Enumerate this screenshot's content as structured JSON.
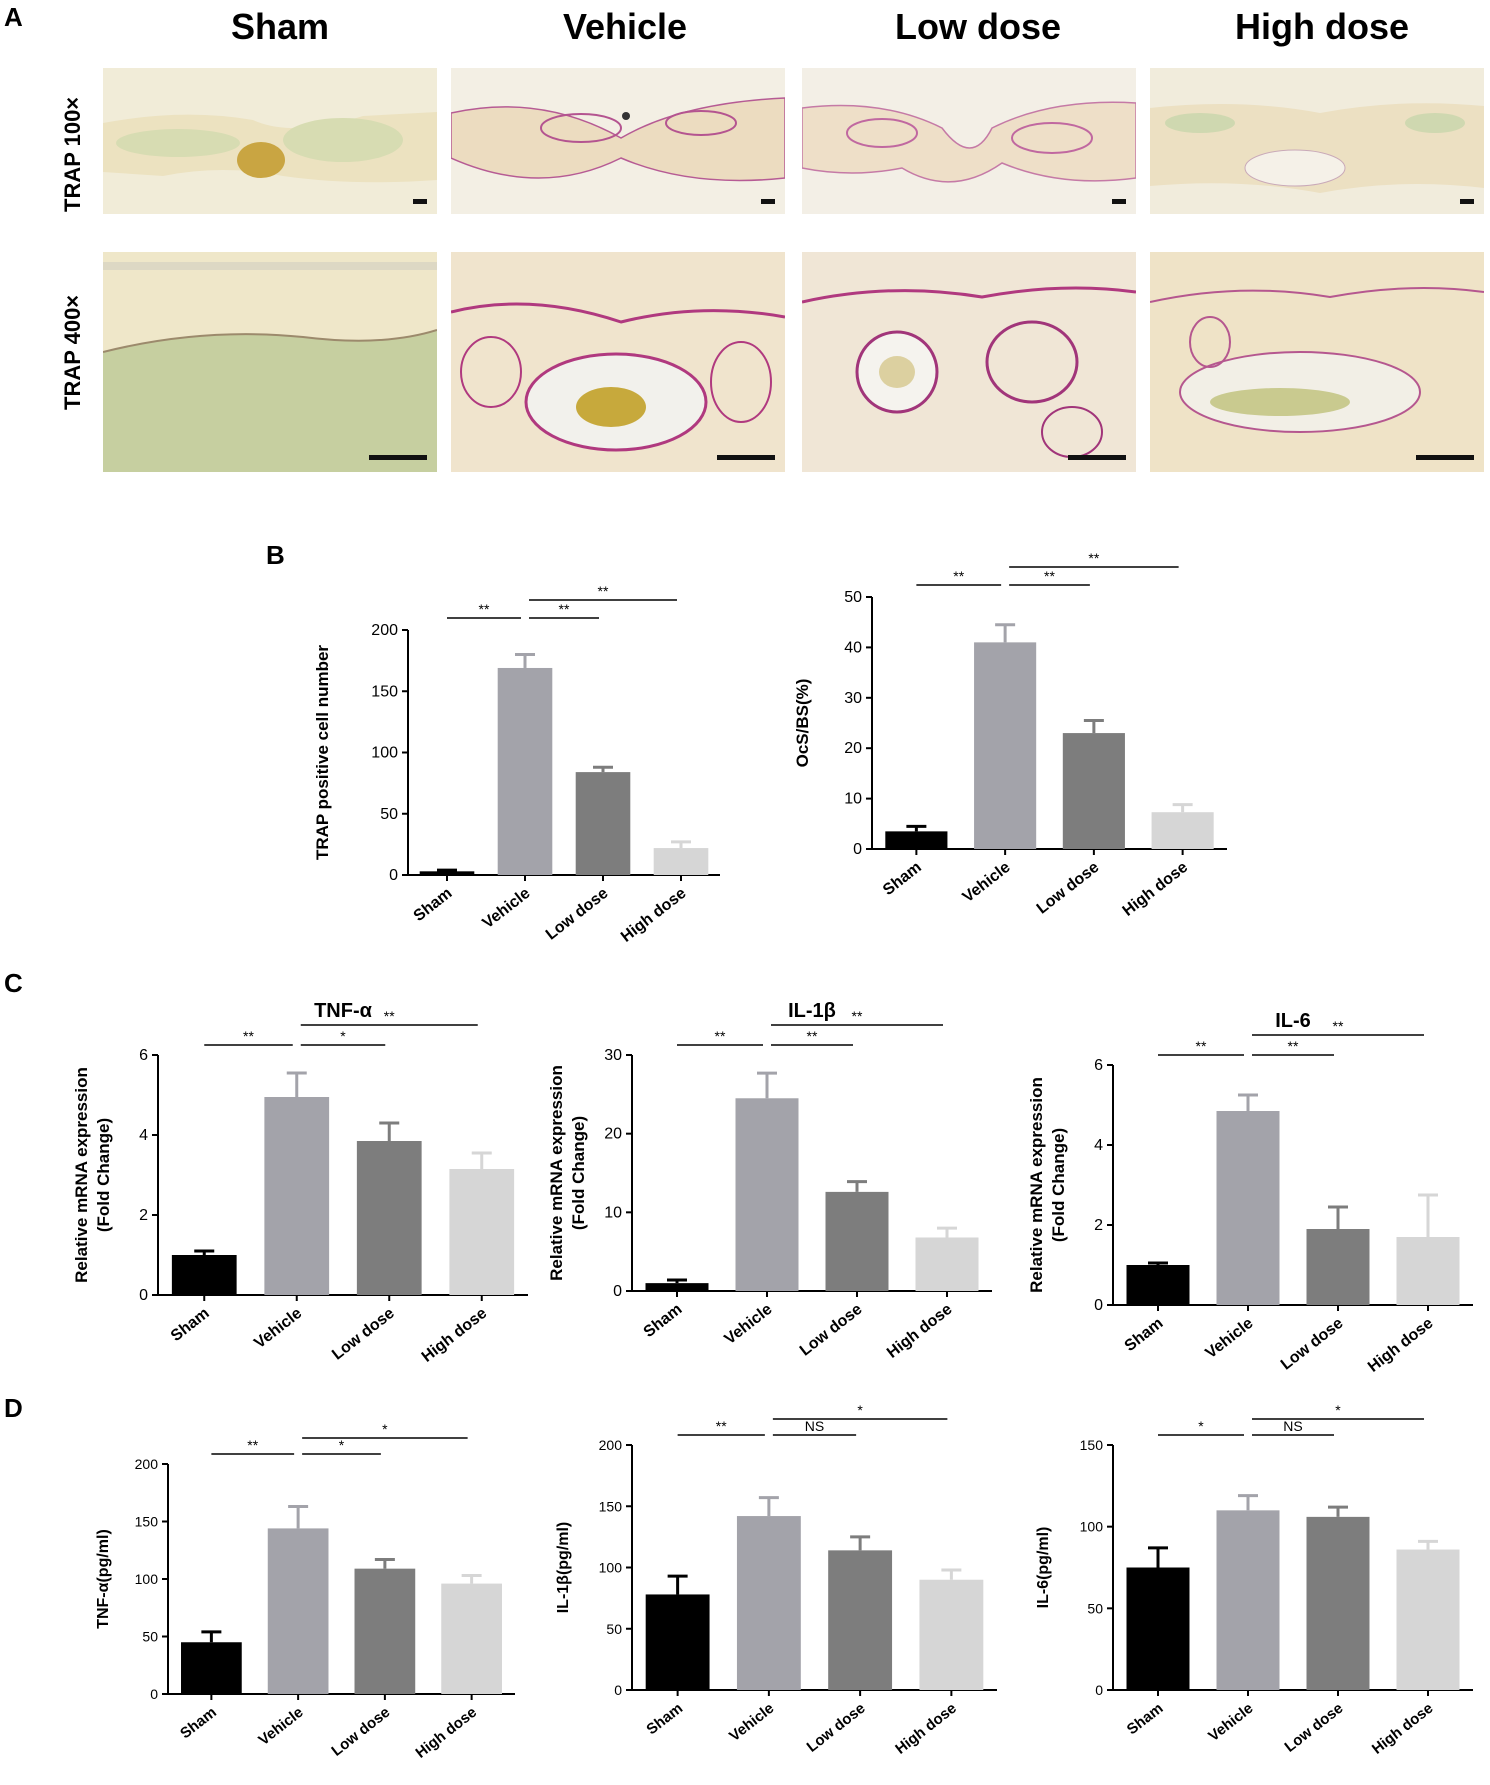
{
  "panel_labels": [
    "A",
    "B",
    "C",
    "D"
  ],
  "panelA": {
    "groups": [
      "Sham",
      "Vehicle",
      "Low dose",
      "High dose"
    ],
    "rows": [
      "TRAP 100×",
      "TRAP 400×"
    ]
  },
  "colors": {
    "sham": "#000000",
    "vehicle": "#a3a3aa",
    "low": "#7d7d7d",
    "high": "#d6d6d6",
    "bone": "#f0e8cc",
    "marrow_green": "#9fb77a",
    "trap_magenta": "#b44b8e"
  },
  "chart_data": [
    {
      "id": "B1",
      "type": "bar",
      "title": "",
      "ylabel": "TRAP positive cell number",
      "categories": [
        "Sham",
        "Vehicle",
        "Low dose",
        "High dose"
      ],
      "values": [
        3,
        169,
        84,
        22
      ],
      "errors": [
        1,
        11,
        4,
        5
      ],
      "ylim": [
        0,
        200
      ],
      "yticks": [
        0,
        50,
        100,
        150,
        200
      ],
      "significance": [
        {
          "from": 0,
          "to": 1,
          "label": "**",
          "level": 0
        },
        {
          "from": 1,
          "to": 2,
          "label": "**",
          "level": 0
        },
        {
          "from": 1,
          "to": 3,
          "label": "**",
          "level": 1
        }
      ]
    },
    {
      "id": "B2",
      "type": "bar",
      "title": "",
      "ylabel": "OcS/BS(%)",
      "categories": [
        "Sham",
        "Vehicle",
        "Low dose",
        "High dose"
      ],
      "values": [
        3.5,
        41,
        23,
        7.3
      ],
      "errors": [
        1,
        3.5,
        2.5,
        1.5
      ],
      "ylim": [
        0,
        50
      ],
      "yticks": [
        0,
        10,
        20,
        30,
        40,
        50
      ],
      "significance": [
        {
          "from": 0,
          "to": 1,
          "label": "**",
          "level": 0
        },
        {
          "from": 1,
          "to": 2,
          "label": "**",
          "level": 0
        },
        {
          "from": 1,
          "to": 3,
          "label": "**",
          "level": 1
        }
      ]
    },
    {
      "id": "C1",
      "type": "bar",
      "title": "TNF-α",
      "ylabel": [
        "Relative mRNA expression",
        "(Fold Change)"
      ],
      "categories": [
        "Sham",
        "Vehicle",
        "Low dose",
        "High dose"
      ],
      "values": [
        1,
        4.95,
        3.85,
        3.15
      ],
      "errors": [
        0.1,
        0.6,
        0.45,
        0.4
      ],
      "ylim": [
        0,
        6
      ],
      "yticks": [
        0,
        2,
        4,
        6
      ],
      "significance": [
        {
          "from": 0,
          "to": 1,
          "label": "**",
          "level": 0
        },
        {
          "from": 1,
          "to": 2,
          "label": "*",
          "level": 0
        },
        {
          "from": 1,
          "to": 3,
          "label": "**",
          "level": 1
        }
      ]
    },
    {
      "id": "C2",
      "type": "bar",
      "title": "IL-1β",
      "ylabel": [
        "Relative mRNA expression",
        "(Fold Change)"
      ],
      "categories": [
        "Sham",
        "Vehicle",
        "Low dose",
        "High dose"
      ],
      "values": [
        1,
        24.5,
        12.6,
        6.8
      ],
      "errors": [
        0.4,
        3.2,
        1.3,
        1.2
      ],
      "ylim": [
        0,
        30
      ],
      "yticks": [
        0,
        10,
        20,
        30
      ],
      "significance": [
        {
          "from": 0,
          "to": 1,
          "label": "**",
          "level": 0
        },
        {
          "from": 1,
          "to": 2,
          "label": "**",
          "level": 0
        },
        {
          "from": 1,
          "to": 3,
          "label": "**",
          "level": 1
        }
      ]
    },
    {
      "id": "C3",
      "type": "bar",
      "title": "IL-6",
      "ylabel": [
        "Relative mRNA expression",
        "(Fold Change)"
      ],
      "categories": [
        "Sham",
        "Vehicle",
        "Low dose",
        "High dose"
      ],
      "values": [
        1,
        4.85,
        1.9,
        1.7
      ],
      "errors": [
        0.05,
        0.4,
        0.55,
        1.05
      ],
      "ylim": [
        0,
        6
      ],
      "yticks": [
        0,
        2,
        4,
        6
      ],
      "significance": [
        {
          "from": 0,
          "to": 1,
          "label": "**",
          "level": 0
        },
        {
          "from": 1,
          "to": 2,
          "label": "**",
          "level": 0
        },
        {
          "from": 1,
          "to": 3,
          "label": "**",
          "level": 1
        }
      ]
    },
    {
      "id": "D1",
      "type": "bar",
      "title": "",
      "ylabel": "TNF-α(pg/ml)",
      "categories": [
        "Sham",
        "Vehicle",
        "Low dose",
        "High dose"
      ],
      "values": [
        45,
        144,
        109,
        96
      ],
      "errors": [
        9,
        19,
        8,
        7
      ],
      "ylim": [
        0,
        200
      ],
      "yticks": [
        0,
        50,
        100,
        150,
        200
      ],
      "significance": [
        {
          "from": 0,
          "to": 1,
          "label": "**",
          "level": 0
        },
        {
          "from": 1,
          "to": 2,
          "label": "*",
          "level": 0
        },
        {
          "from": 1,
          "to": 3,
          "label": "*",
          "level": 1
        }
      ]
    },
    {
      "id": "D2",
      "type": "bar",
      "title": "",
      "ylabel": "IL-1β(pg/ml)",
      "categories": [
        "Sham",
        "Vehicle",
        "Low dose",
        "High dose"
      ],
      "values": [
        78,
        142,
        114,
        90
      ],
      "errors": [
        15,
        15,
        11,
        8
      ],
      "ylim": [
        0,
        200
      ],
      "yticks": [
        0,
        50,
        100,
        150,
        200
      ],
      "significance": [
        {
          "from": 0,
          "to": 1,
          "label": "**",
          "level": 0
        },
        {
          "from": 1,
          "to": 2,
          "label": "NS",
          "level": 0
        },
        {
          "from": 1,
          "to": 3,
          "label": "*",
          "level": 1
        }
      ]
    },
    {
      "id": "D3",
      "type": "bar",
      "title": "",
      "ylabel": "IL-6(pg/ml)",
      "categories": [
        "Sham",
        "Vehicle",
        "Low dose",
        "High dose"
      ],
      "values": [
        75,
        110,
        106,
        86
      ],
      "errors": [
        12,
        9,
        6,
        5
      ],
      "ylim": [
        0,
        150
      ],
      "yticks": [
        0,
        50,
        100,
        150
      ],
      "significance": [
        {
          "from": 0,
          "to": 1,
          "label": "*",
          "level": 0
        },
        {
          "from": 1,
          "to": 2,
          "label": "NS",
          "level": 0
        },
        {
          "from": 1,
          "to": 3,
          "label": "*",
          "level": 1
        }
      ]
    }
  ]
}
